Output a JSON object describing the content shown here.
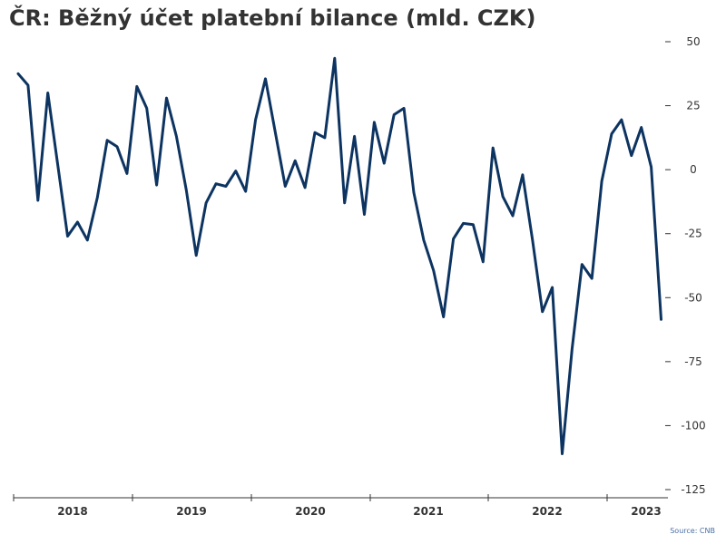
{
  "title": "ČR: Běžný účet platební bilance (mld. CZK)",
  "source": "Source: CNB",
  "colors": {
    "line": "#0d3461",
    "axis": "#333333",
    "tick_text": "#333333",
    "source_text": "#4a6fa5"
  },
  "chart_data": {
    "type": "line",
    "title": "ČR: Běžný účet platební bilance (mld. CZK)",
    "xlabel": "",
    "ylabel": "",
    "ylim": [
      -125,
      50
    ],
    "y_axis_position": "right",
    "y_ticks": [
      50,
      25,
      0,
      -25,
      -50,
      -75,
      -100,
      -125
    ],
    "y_tick_labels": [
      "50",
      "25",
      "0",
      "-25",
      "-50",
      "-75",
      "-100",
      "-125"
    ],
    "x_axis_labels": [
      "2018",
      "2019",
      "2020",
      "2021",
      "2022",
      "2023"
    ],
    "grid": false,
    "legend": "none",
    "series": [
      {
        "x": [
          "2017-12",
          "2018-01",
          "2018-02",
          "2018-03",
          "2018-04",
          "2018-05",
          "2018-06",
          "2018-07",
          "2018-08",
          "2018-09",
          "2018-10",
          "2018-11",
          "2018-12",
          "2019-01",
          "2019-02",
          "2019-03",
          "2019-04",
          "2019-05",
          "2019-06",
          "2019-07",
          "2019-08",
          "2019-09",
          "2019-10",
          "2019-11",
          "2019-12",
          "2020-01",
          "2020-02",
          "2020-03",
          "2020-04",
          "2020-05",
          "2020-06",
          "2020-07",
          "2020-08",
          "2020-09",
          "2020-10",
          "2020-11",
          "2020-12",
          "2021-01",
          "2021-02",
          "2021-03",
          "2021-04",
          "2021-05",
          "2021-06",
          "2021-07",
          "2021-08",
          "2021-09",
          "2021-10",
          "2021-11",
          "2021-12",
          "2022-01",
          "2022-02",
          "2022-03",
          "2022-04",
          "2022-05",
          "2022-06",
          "2022-07",
          "2022-08",
          "2022-09",
          "2022-10",
          "2022-11",
          "2022-12",
          "2023-01",
          "2023-02",
          "2023-03",
          "2023-04",
          "2023-05"
        ],
        "values": [
          37.5,
          33,
          -12,
          30,
          2,
          -26,
          -20.5,
          -27.5,
          -11,
          11.5,
          9,
          -1.5,
          32.5,
          24,
          -6,
          28,
          13,
          -8,
          -33.5,
          -13,
          -5.5,
          -6.5,
          -0.5,
          -8.5,
          19.5,
          35.5,
          14.5,
          -6.5,
          3.5,
          -7,
          14.5,
          12.5,
          43.5,
          -13,
          13,
          -17.5,
          18.5,
          2.5,
          21.5,
          24,
          -9,
          -27.5,
          -39.5,
          -57.5,
          -27,
          -21,
          -21.5,
          -36,
          8.5,
          -10.5,
          -18,
          -2,
          -27.5,
          -55.5,
          -46,
          -111,
          -70,
          -37,
          -42.5,
          -4.5,
          14,
          19.5,
          5.5,
          16.5,
          1,
          -58.5
        ]
      }
    ]
  }
}
